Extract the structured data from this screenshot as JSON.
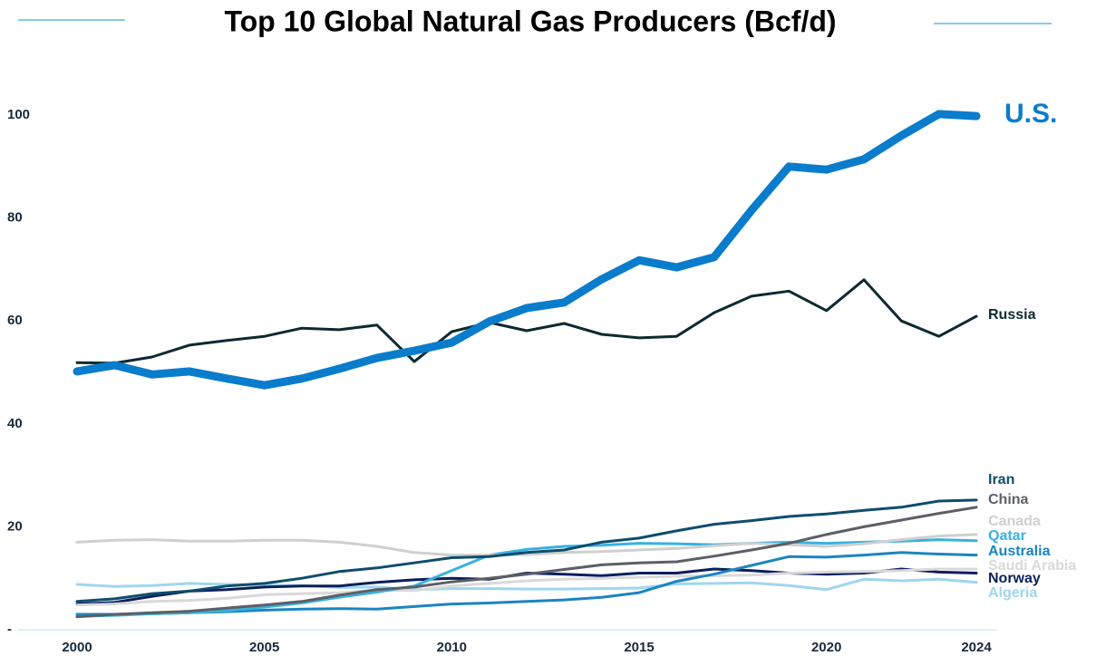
{
  "chart_data": {
    "type": "line",
    "title": "Top 10 Global Natural Gas Producers (Bcf/d)",
    "x": [
      2000,
      2001,
      2002,
      2003,
      2004,
      2005,
      2006,
      2007,
      2008,
      2009,
      2010,
      2011,
      2012,
      2013,
      2014,
      2015,
      2016,
      2017,
      2018,
      2019,
      2020,
      2021,
      2022,
      2023,
      2024
    ],
    "xlim": [
      2000,
      2024
    ],
    "xticks": [
      2000,
      2005,
      2010,
      2015,
      2020,
      2024
    ],
    "ylim": [
      0,
      100
    ],
    "yticks": [
      {
        "value": 0,
        "label": "-"
      },
      20,
      40,
      60,
      80,
      100
    ],
    "series": [
      {
        "name": "U.S.",
        "color": "#0a7ccc",
        "values": [
          50.2,
          51.4,
          49.6,
          50.2,
          48.8,
          47.5,
          48.8,
          50.7,
          52.8,
          54.2,
          55.8,
          59.9,
          62.5,
          63.6,
          68.1,
          71.8,
          70.4,
          72.4,
          81.5,
          90,
          89.4,
          91.4,
          96,
          100.2,
          99.8
        ]
      },
      {
        "name": "Russia",
        "color": "#0d2a30",
        "values": [
          51.9,
          51.8,
          53,
          55.3,
          56.2,
          57,
          58.6,
          58.3,
          59.2,
          52.1,
          57.9,
          59.7,
          58.1,
          59.5,
          57.4,
          56.7,
          57,
          61.6,
          64.8,
          65.8,
          62,
          68,
          60,
          57,
          60.9
        ]
      },
      {
        "name": "Iran",
        "color": "#0e4d6e",
        "values": [
          5.5,
          6,
          7,
          7.5,
          8.5,
          9,
          10,
          11.3,
          12,
          13,
          14,
          14.2,
          15,
          15.5,
          17,
          17.8,
          19.2,
          20.5,
          21.2,
          22,
          22.5,
          23.2,
          23.8,
          25,
          25.2
        ]
      },
      {
        "name": "China",
        "color": "#5c5f66",
        "values": [
          2.5,
          3,
          3.3,
          3.6,
          4.2,
          4.8,
          5.5,
          6.7,
          7.8,
          8.3,
          9.3,
          10,
          10.8,
          11.7,
          12.6,
          13,
          13.2,
          14.3,
          15.5,
          16.8,
          18.5,
          20,
          21.3,
          22.6,
          23.8
        ]
      },
      {
        "name": "Canada",
        "color": "#cfcfcf",
        "values": [
          17,
          17.4,
          17.5,
          17.2,
          17.2,
          17.4,
          17.4,
          17,
          16.2,
          15,
          14.5,
          14.5,
          14.6,
          15,
          15.2,
          15.5,
          15.8,
          16.3,
          16.8,
          16.5,
          16.2,
          16.7,
          17.5,
          18.2,
          18.5
        ]
      },
      {
        "name": "Qatar",
        "color": "#38b2e0",
        "values": [
          2.6,
          2.8,
          3.1,
          3.3,
          3.7,
          4.4,
          5.2,
          6.3,
          7.3,
          8.5,
          11.5,
          14.5,
          15.6,
          16.2,
          16.4,
          16.8,
          16.7,
          16.5,
          16.8,
          17,
          16.8,
          17,
          17.2,
          17.5,
          17.3
        ]
      },
      {
        "name": "Australia",
        "color": "#1a85c2",
        "values": [
          3,
          3,
          3.1,
          3.3,
          3.5,
          3.8,
          4,
          4.1,
          4,
          4.5,
          5,
          5.2,
          5.5,
          5.8,
          6.3,
          7.2,
          9.4,
          10.8,
          12.5,
          14.2,
          14.1,
          14.5,
          15,
          14.7,
          14.5
        ]
      },
      {
        "name": "Saudi Arabia",
        "color": "#d9d9d9",
        "values": [
          4.8,
          5,
          5.5,
          5.7,
          6.1,
          6.8,
          7,
          7.2,
          7.7,
          7.6,
          8.5,
          9,
          9.5,
          9.8,
          10,
          10.2,
          10.4,
          10.5,
          10.6,
          11,
          11.2,
          11.3,
          11.5,
          11.8,
          11.8
        ]
      },
      {
        "name": "Norway",
        "color": "#0c1f5c",
        "values": [
          5,
          5.3,
          6.5,
          7.5,
          7.8,
          8.3,
          8.5,
          8.5,
          9.2,
          9.7,
          10,
          9.8,
          11,
          10.8,
          10.5,
          11,
          11,
          11.8,
          11.5,
          11,
          10.8,
          11,
          11.8,
          11.2,
          11
        ]
      },
      {
        "name": "Algeria",
        "color": "#9fd6ee",
        "values": [
          8.8,
          8.4,
          8.6,
          9,
          8.8,
          8.7,
          8.6,
          8.2,
          8.3,
          7.8,
          8,
          8,
          7.9,
          7.9,
          8,
          8.1,
          8.9,
          9,
          9.1,
          8.6,
          7.8,
          9.8,
          9.5,
          9.8,
          9.2
        ]
      }
    ]
  }
}
